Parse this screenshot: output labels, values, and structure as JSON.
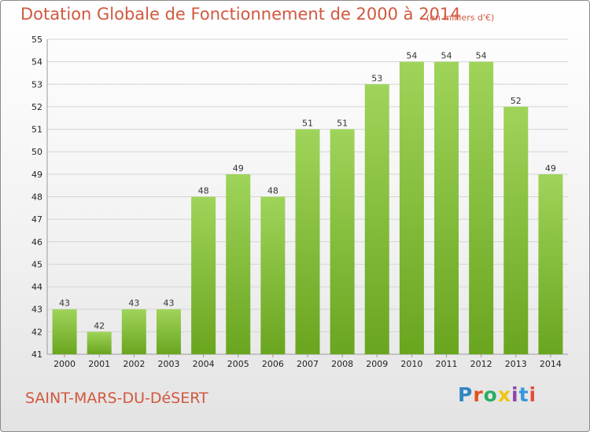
{
  "header": {
    "title": "Dotation Globale de Fonctionnement de 2000 à 2014",
    "unit": "(en milliers d'€)"
  },
  "footer": {
    "commune": "SAINT-MARS-DU-DéSERT",
    "logo": "Proxiti",
    "logo_colors": [
      "#2e86c1",
      "#e4511e",
      "#27ae60",
      "#f1c40f",
      "#8e44ad",
      "#3498db",
      "#e74c3c"
    ]
  },
  "chart_data": {
    "type": "bar",
    "title": "Dotation Globale de Fonctionnement de 2000 à 2014",
    "subtitle": "(en milliers d'€)",
    "categories": [
      "2000",
      "2001",
      "2002",
      "2003",
      "2004",
      "2005",
      "2006",
      "2007",
      "2008",
      "2009",
      "2010",
      "2011",
      "2012",
      "2013",
      "2014"
    ],
    "values": [
      43,
      42,
      43,
      43,
      48,
      49,
      48,
      51,
      51,
      53,
      54,
      54,
      54,
      52,
      49
    ],
    "data_labels": [
      "43",
      "42",
      "43",
      "43",
      "48",
      "49",
      "48",
      "51",
      "51",
      "53",
      "54",
      "54",
      "54",
      "52",
      "49"
    ],
    "ylim": [
      41,
      55
    ],
    "yticks": [
      41,
      42,
      43,
      44,
      45,
      46,
      47,
      48,
      49,
      50,
      51,
      52,
      53,
      54,
      55
    ],
    "grid": true,
    "bar_color_top": "#9fd45a",
    "bar_color_bottom": "#6aa51f",
    "xlabel": "",
    "ylabel": ""
  }
}
